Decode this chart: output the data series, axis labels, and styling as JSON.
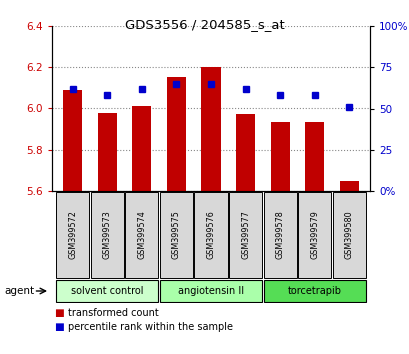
{
  "title": "GDS3556 / 204585_s_at",
  "samples": [
    "GSM399572",
    "GSM399573",
    "GSM399574",
    "GSM399575",
    "GSM399576",
    "GSM399577",
    "GSM399578",
    "GSM399579",
    "GSM399580"
  ],
  "bar_values": [
    6.09,
    5.98,
    6.01,
    6.155,
    6.2,
    5.975,
    5.935,
    5.935,
    5.65
  ],
  "percentile_values": [
    62,
    58,
    62,
    65,
    65,
    62,
    58,
    58,
    51
  ],
  "bar_bottom": 5.6,
  "ylim": [
    5.6,
    6.4
  ],
  "y2lim": [
    0,
    100
  ],
  "y_ticks": [
    5.6,
    5.8,
    6.0,
    6.2,
    6.4
  ],
  "y2_ticks": [
    0,
    25,
    50,
    75,
    100
  ],
  "bar_color": "#c00000",
  "dot_color": "#0000cc",
  "grid_color": "#888888",
  "bg_color": "#ffffff",
  "tick_label_color_left": "#cc0000",
  "tick_label_color_right": "#0000cc",
  "group_spans": [
    {
      "start": 0,
      "end": 2,
      "label": "solvent control",
      "color": "#ccffcc"
    },
    {
      "start": 3,
      "end": 5,
      "label": "angiotensin II",
      "color": "#aaffaa"
    },
    {
      "start": 6,
      "end": 8,
      "label": "torcetrapib",
      "color": "#55dd55"
    }
  ],
  "agent_label": "agent",
  "legend_bar_label": "transformed count",
  "legend_dot_label": "percentile rank within the sample",
  "cell_color": "#d8d8d8",
  "y2_tick_labels": [
    "0%",
    "25",
    "50",
    "75",
    "100%"
  ]
}
